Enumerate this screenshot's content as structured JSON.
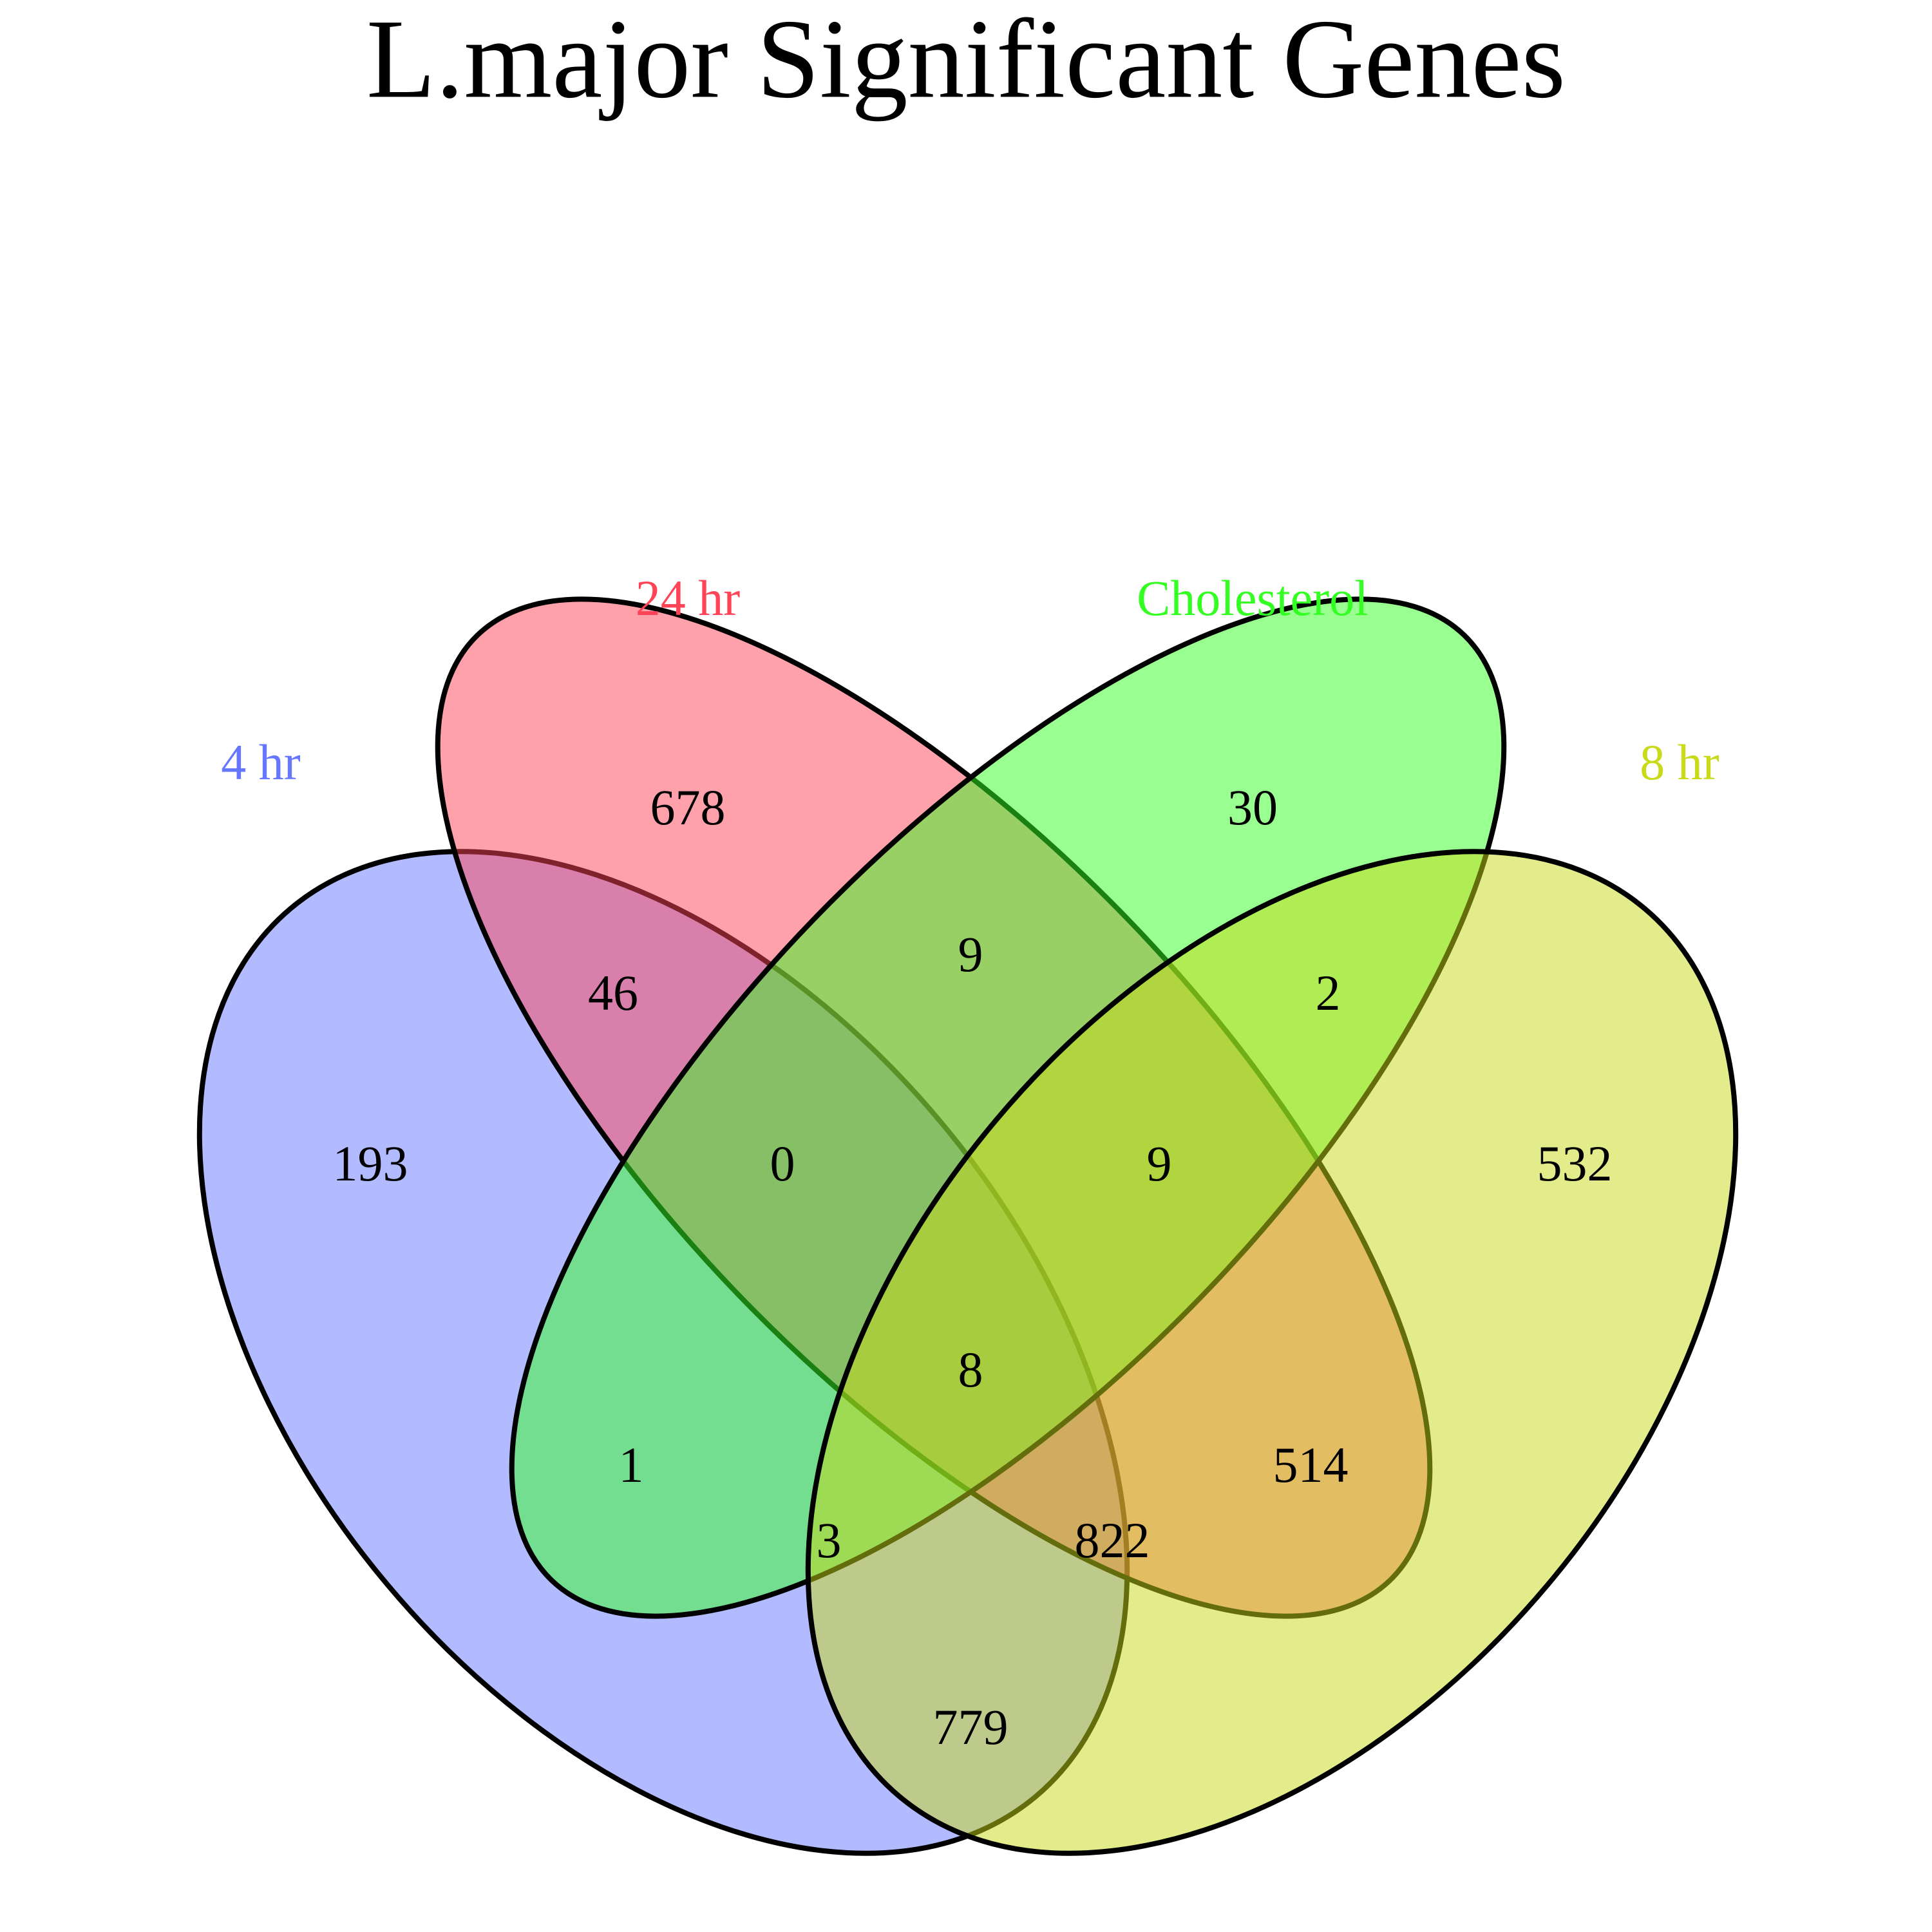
{
  "title": "L.major Significant Genes",
  "sets": [
    {
      "id": "4hr",
      "label": "4 hr",
      "color": "#6677FF"
    },
    {
      "id": "24hr",
      "label": "24 hr",
      "color": "#FF4458"
    },
    {
      "id": "cholesterol",
      "label": "Cholesterol",
      "color": "#33FF22"
    },
    {
      "id": "8hr",
      "label": "8 hr",
      "color": "#C8DA18"
    }
  ],
  "regions": {
    "only_4hr": "193",
    "only_24hr": "678",
    "only_cholesterol": "30",
    "only_8hr": "532",
    "4hr_24hr": "46",
    "24hr_cholesterol": "9",
    "cholesterol_8hr": "2",
    "4hr_24hr_cholesterol": "0",
    "24hr_cholesterol_8hr": "9",
    "all_four": "8",
    "4hr_cholesterol": "1",
    "24hr_8hr": "514",
    "4hr_cholesterol_8hr": "3",
    "4hr_24hr_8hr": "822",
    "4hr_8hr": "779"
  }
}
